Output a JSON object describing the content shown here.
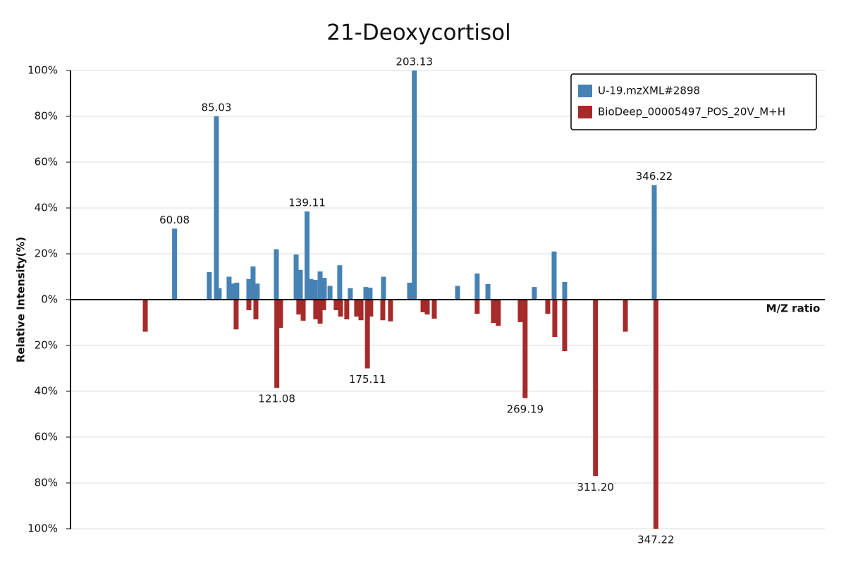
{
  "chart_data": {
    "type": "bar",
    "title": "21-Deoxycortisol",
    "x_axis_label": "M/Z ratio",
    "y_axis_label": "Relative Intensity(%)",
    "xlim": [
      -2,
      448
    ],
    "ylim": [
      -100,
      100
    ],
    "yticks": [
      {
        "value": -100,
        "label": "100%"
      },
      {
        "value": -80,
        "label": "80%"
      },
      {
        "value": -60,
        "label": "60%"
      },
      {
        "value": -40,
        "label": "40%"
      },
      {
        "value": -20,
        "label": "20%"
      },
      {
        "value": 0,
        "label": "0%"
      },
      {
        "value": 20,
        "label": "20%"
      },
      {
        "value": 40,
        "label": "40%"
      },
      {
        "value": 60,
        "label": "60%"
      },
      {
        "value": 80,
        "label": "80%"
      },
      {
        "value": 100,
        "label": "100%"
      }
    ],
    "grid": true,
    "legend": "top-right",
    "series": [
      {
        "name": "U-19.mzXML#2898",
        "color": "#4682b4",
        "x": [
          60.08,
          80.8,
          85.03,
          86.7,
          92.6,
          94.7,
          97.2,
          104.4,
          106.9,
          109.4,
          120.8,
          132.6,
          135.1,
          139.11,
          141.4,
          143.9,
          146.9,
          149.4,
          152.8,
          158.6,
          164.9,
          174.2,
          176.7,
          184.7,
          200.3,
          203.13,
          228.9,
          240.6,
          247.0,
          274.7,
          286.5,
          292.8,
          346.22
        ],
        "values": [
          31,
          12,
          80,
          5,
          10,
          7,
          7.4,
          9,
          14.5,
          7,
          22,
          19.7,
          13,
          38.5,
          9,
          8.6,
          12.3,
          9.5,
          6,
          15,
          5,
          5.5,
          5.2,
          10,
          7.4,
          100,
          6,
          11.4,
          6.8,
          5.5,
          21,
          7.7,
          50
        ],
        "x_labels": [
          "60.08",
          null,
          "85.03",
          null,
          null,
          null,
          null,
          null,
          null,
          null,
          null,
          null,
          null,
          "139.11",
          null,
          null,
          null,
          null,
          null,
          null,
          null,
          null,
          null,
          null,
          null,
          "203.13",
          null,
          null,
          null,
          null,
          null,
          null,
          "346.22"
        ]
      },
      {
        "name": "BioDeep_00005497_POS_20V_M+H",
        "color": "#a52a2a",
        "x": [
          42.6,
          96.8,
          104.4,
          108.6,
          121.08,
          123.3,
          134.2,
          136.8,
          144.3,
          146.9,
          149.0,
          156.5,
          159.1,
          162.8,
          168.7,
          171.3,
          175.11,
          177.1,
          184.3,
          188.9,
          208.3,
          210.8,
          215.0,
          240.6,
          250.3,
          253.2,
          266.3,
          269.19,
          282.7,
          286.9,
          292.8,
          311.2,
          329.0,
          347.22
        ],
        "values": [
          -14,
          -13,
          -4.6,
          -8.6,
          -38.5,
          -12.3,
          -6.5,
          -9.2,
          -8.6,
          -10.5,
          -4.6,
          -4.6,
          -7.4,
          -8.6,
          -7.4,
          -9,
          -30,
          -7.4,
          -9,
          -9.5,
          -5.5,
          -6.5,
          -8.3,
          -6.2,
          -10.2,
          -11.4,
          -9.8,
          -43,
          -6.2,
          -16.3,
          -22.5,
          -77,
          -14,
          -100
        ],
        "x_labels": [
          null,
          null,
          null,
          null,
          "121.08",
          null,
          null,
          null,
          null,
          null,
          null,
          null,
          null,
          null,
          null,
          null,
          "175.11",
          null,
          null,
          null,
          null,
          null,
          null,
          null,
          null,
          null,
          null,
          "269.19",
          null,
          null,
          null,
          "311.20",
          null,
          "347.22"
        ]
      }
    ]
  }
}
